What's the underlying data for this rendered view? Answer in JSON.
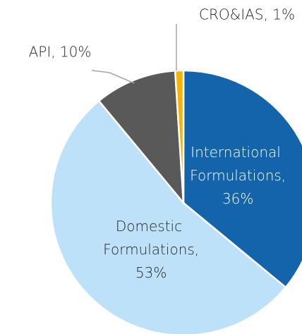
{
  "chart_data": {
    "type": "pie",
    "values": [
      36,
      53,
      10,
      1
    ],
    "value_labels": [
      "International Formulations, 36%",
      "Domestic Formulations, 53%",
      "API, 10%",
      "CRO&IAS, 1%"
    ],
    "colors": [
      "#1464ac",
      "#bde1f9",
      "#595959",
      "#f5b400"
    ]
  }
}
